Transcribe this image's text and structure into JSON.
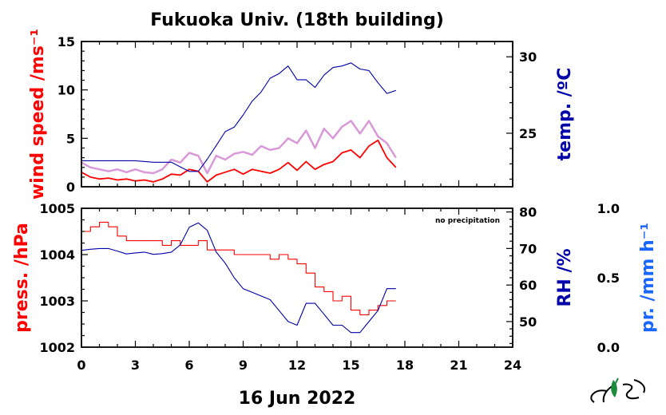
{
  "header": {
    "title": "Fukuoka Univ. (18th building)"
  },
  "footer": {
    "date": "16 Jun 2022",
    "logo": "FUES"
  },
  "colors": {
    "wind": "#ff0000",
    "gust": "#cc77cc",
    "temp": "#0000aa",
    "pressure": "#ff0000",
    "rh": "#0000aa",
    "precip": "#1a66ff"
  },
  "x_axis": {
    "min": 0,
    "max": 24,
    "ticks": [
      "0",
      "3",
      "6",
      "9",
      "12",
      "15",
      "18",
      "21",
      "24"
    ]
  },
  "chart_data": [
    {
      "type": "line",
      "panel": "top",
      "y_left": {
        "label": "wind speed /ms⁻¹",
        "range": [
          0,
          15
        ],
        "ticks": [
          "0",
          "5",
          "10",
          "15"
        ]
      },
      "y_right": {
        "label": "temp. /ºC",
        "range": [
          21.5,
          31
        ],
        "ticks": [
          "25",
          "30"
        ]
      },
      "series": [
        {
          "role": "wind_gust",
          "axis": "left",
          "x": [
            0,
            0.5,
            1,
            1.5,
            2,
            2.5,
            3,
            3.5,
            4,
            4.5,
            5,
            5.5,
            6,
            6.5,
            7,
            7.5,
            8,
            8.5,
            9,
            9.5,
            10,
            10.5,
            11,
            11.5,
            12,
            12.5,
            13,
            13.5,
            14,
            14.5,
            15,
            15.5,
            16,
            16.5,
            17,
            17.5
          ],
          "values": [
            2.5,
            2,
            1.8,
            1.6,
            1.8,
            1.5,
            1.8,
            1.5,
            1.4,
            1.8,
            2.8,
            2.5,
            3.5,
            3.2,
            1.4,
            3.2,
            2.8,
            3.4,
            3.6,
            3.3,
            4.2,
            3.8,
            4,
            5,
            4.5,
            5.8,
            4,
            6,
            5,
            6.2,
            6.8,
            5.5,
            6.8,
            5.2,
            4.5,
            3
          ]
        },
        {
          "role": "wind_mean",
          "axis": "left",
          "x": [
            0,
            0.5,
            1,
            1.5,
            2,
            2.5,
            3,
            3.5,
            4,
            4.5,
            5,
            5.5,
            6,
            6.5,
            7,
            7.5,
            8,
            8.5,
            9,
            9.5,
            10,
            10.5,
            11,
            11.5,
            12,
            12.5,
            13,
            13.5,
            14,
            14.5,
            15,
            15.5,
            16,
            16.5,
            17,
            17.5
          ],
          "values": [
            1.5,
            1,
            0.8,
            0.9,
            0.7,
            0.8,
            0.6,
            0.7,
            0.5,
            0.8,
            1.3,
            1.2,
            1.8,
            1.6,
            0.5,
            1.2,
            1.5,
            1.8,
            1.3,
            1.8,
            1.6,
            1.4,
            1.8,
            2.5,
            1.7,
            2.6,
            1.8,
            2.3,
            2.6,
            3.5,
            3.8,
            3,
            4.2,
            4.8,
            3,
            2
          ]
        },
        {
          "role": "temperature",
          "axis": "right",
          "x": [
            0,
            1,
            2,
            3,
            4,
            5,
            5.5,
            6,
            6.5,
            7,
            7.5,
            8,
            8.5,
            9,
            9.5,
            10,
            10.5,
            11,
            11.5,
            12,
            12.5,
            13,
            13.5,
            14,
            14.5,
            15,
            15.5,
            16,
            16.5,
            17,
            17.5
          ],
          "values": [
            23.2,
            23.2,
            23.2,
            23.2,
            23.1,
            23.1,
            22.8,
            22.5,
            22.5,
            23.3,
            24.2,
            25.1,
            25.4,
            26.2,
            27.1,
            27.7,
            28.6,
            28.9,
            29.4,
            28.5,
            28.5,
            28,
            28.8,
            29.3,
            29.4,
            29.6,
            29.2,
            29.1,
            28.3,
            27.6,
            27.8
          ]
        }
      ]
    },
    {
      "type": "line",
      "panel": "bottom",
      "y_left": {
        "label": "press. /hPa",
        "range": [
          1002,
          1005
        ],
        "ticks": [
          "1002",
          "1003",
          "1004",
          "1005"
        ]
      },
      "y_right": {
        "label": "RH /%",
        "range": [
          43,
          81
        ],
        "ticks": [
          "50",
          "60",
          "70",
          "80"
        ]
      },
      "y_extra": {
        "label": "pr. /mm h⁻¹",
        "range": [
          0,
          1
        ],
        "ticks": [
          "0.0",
          "0.5",
          "1.0"
        ]
      },
      "annotation": "no precipitation",
      "series": [
        {
          "role": "pressure",
          "axis": "left",
          "x": [
            0,
            0.5,
            1,
            1.5,
            2,
            2.5,
            3,
            3.5,
            4,
            4.5,
            5,
            5.5,
            6,
            6.5,
            7,
            7.5,
            8,
            8.5,
            9,
            9.5,
            10,
            10.5,
            11,
            11.5,
            12,
            12.5,
            13,
            13.5,
            14,
            14.5,
            15,
            15.5,
            16,
            16.5,
            17,
            17.5
          ],
          "values": [
            1004.5,
            1004.6,
            1004.7,
            1004.6,
            1004.4,
            1004.3,
            1004.3,
            1004.3,
            1004.3,
            1004.2,
            1004.3,
            1004.2,
            1004.2,
            1004.3,
            1004.1,
            1004.1,
            1004.1,
            1004,
            1004,
            1004,
            1004,
            1003.9,
            1004,
            1003.9,
            1003.8,
            1003.6,
            1003.3,
            1003.2,
            1003,
            1003.1,
            1002.8,
            1002.7,
            1002.8,
            1002.9,
            1003,
            1003
          ]
        },
        {
          "role": "relative_humidity",
          "axis": "right",
          "x": [
            0,
            0.5,
            1,
            1.5,
            2,
            2.5,
            3,
            3.5,
            4,
            4.5,
            5,
            5.5,
            6,
            6.5,
            7,
            7.5,
            8,
            8.5,
            9,
            9.5,
            10,
            10.5,
            11,
            11.5,
            12,
            12.5,
            13,
            13.5,
            14,
            14.5,
            15,
            15.5,
            16,
            16.5,
            17,
            17.5
          ],
          "values": [
            69.5,
            69.8,
            70,
            70,
            69.3,
            68.5,
            68.8,
            69,
            68.4,
            68.6,
            69,
            71,
            75.8,
            77,
            75,
            69,
            66,
            62,
            59,
            58,
            57,
            56,
            53,
            50,
            49,
            55,
            55,
            52,
            49,
            49,
            47,
            47,
            50,
            53,
            59,
            59
          ]
        }
      ]
    }
  ]
}
